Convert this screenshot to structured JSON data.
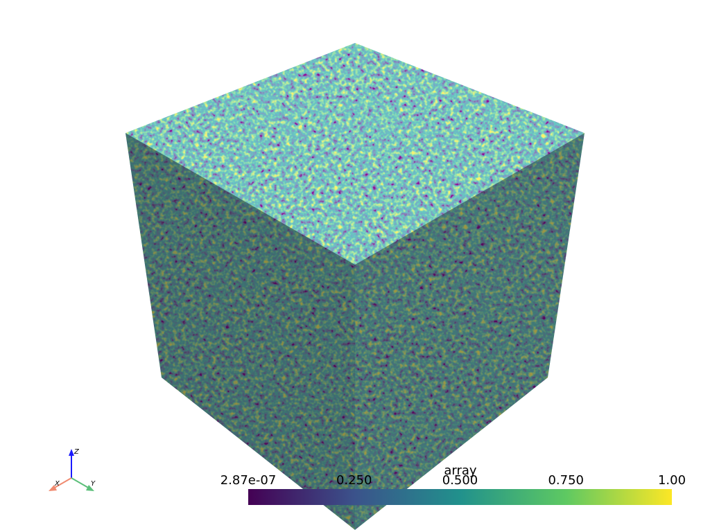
{
  "scalar_bar": {
    "title": "array",
    "clim": [
      2.87e-07,
      1
    ],
    "ticks": [
      {
        "value": 2.87e-07,
        "label": "2.87e-07"
      },
      {
        "value": 0.25,
        "label": "0.250"
      },
      {
        "value": 0.5,
        "label": "0.500"
      },
      {
        "value": 0.75,
        "label": "0.750"
      },
      {
        "value": 1,
        "label": "1.00"
      }
    ]
  },
  "axes_widget": {
    "x_label": "X",
    "y_label": "Y",
    "z_label": "Z"
  }
}
